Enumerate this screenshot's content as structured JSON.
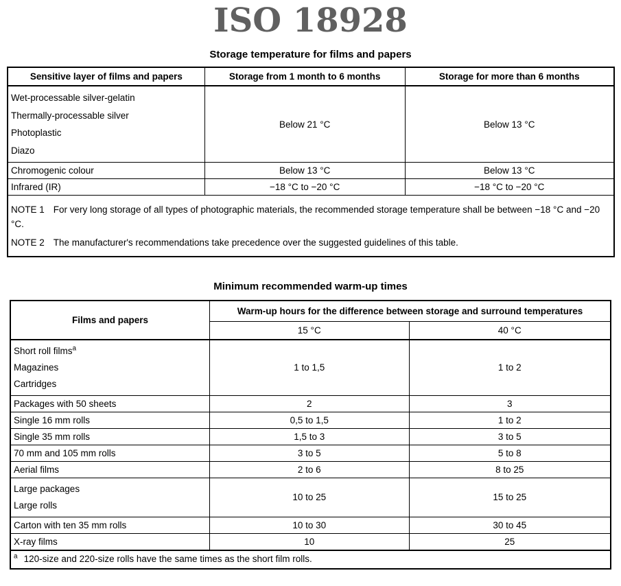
{
  "page": {
    "title": "ISO 18928",
    "title_color": "#606060",
    "border_color": "#000000"
  },
  "table1": {
    "caption": "Storage temperature for films and papers",
    "headers": [
      "Sensitive layer of films and papers",
      "Storage from 1 month to 6 months",
      "Storage for more than 6 months"
    ],
    "rows": [
      {
        "lines": [
          "Wet-processable silver-gelatin",
          "Thermally-processable silver",
          "Photoplastic",
          "Diazo"
        ],
        "storage_1_6": "Below 21 °C",
        "storage_6plus": "Below 13 °C"
      },
      {
        "lines": [
          "Chromogenic colour"
        ],
        "storage_1_6": "Below 13 °C",
        "storage_6plus": "Below 13 °C"
      },
      {
        "lines": [
          "Infrared (IR)"
        ],
        "storage_1_6": "−18 °C to −20 °C",
        "storage_6plus": "−18 °C to −20 °C"
      }
    ],
    "notes": [
      {
        "label": "NOTE 1",
        "text": "For very long storage of all types of photographic materials, the recommended storage temperature shall be between −18 °C and −20 °C."
      },
      {
        "label": "NOTE 2",
        "text": "The manufacturer's recommendations take precedence over the suggested guidelines of this table."
      }
    ]
  },
  "table2": {
    "caption": "Minimum recommended warm-up times",
    "col1_header": "Films and papers",
    "span_header": "Warm-up hours for the difference between storage and surround temperatures",
    "sub_headers": [
      "15 °C",
      "40 °C"
    ],
    "rows": [
      {
        "lines": [
          "Short roll films",
          "Magazines",
          "Cartridges"
        ],
        "h15": "1 to 1,5",
        "h40": "1 to 2"
      },
      {
        "lines": [
          "Packages with 50 sheets"
        ],
        "h15": "2",
        "h40": "3"
      },
      {
        "lines": [
          "Single 16 mm rolls"
        ],
        "h15": "0,5 to 1,5",
        "h40": "1 to 2"
      },
      {
        "lines": [
          "Single 35 mm rolls"
        ],
        "h15": "1,5 to 3",
        "h40": "3 to 5"
      },
      {
        "lines": [
          "70 mm and 105 mm rolls"
        ],
        "h15": "3 to 5",
        "h40": "5 to 8"
      },
      {
        "lines": [
          "Aerial films"
        ],
        "h15": "2 to 6",
        "h40": "8 to 25"
      },
      {
        "lines": [
          "Large packages",
          "Large rolls"
        ],
        "h15": "10 to 25",
        "h40": "15 to 25"
      },
      {
        "lines": [
          "Carton with ten 35 mm rolls"
        ],
        "h15": "10 to 30",
        "h40": "30 to 45"
      },
      {
        "lines": [
          "X-ray films"
        ],
        "h15": "10",
        "h40": "25"
      }
    ],
    "footnote": {
      "marker": "a",
      "text": "120-size and 220-size rolls have the same times as the short film rolls."
    }
  }
}
